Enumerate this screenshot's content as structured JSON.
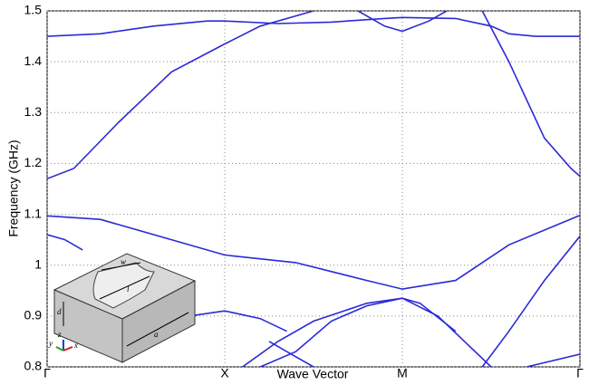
{
  "chart_data": {
    "type": "line",
    "xlabel": "Wave Vector",
    "ylabel": "Frequency (GHz)",
    "xlim": [
      0,
      3
    ],
    "ylim": [
      0.8,
      1.5
    ],
    "xticks": [
      {
        "value": 0,
        "label": "Γ"
      },
      {
        "value": 1,
        "label": "X"
      },
      {
        "value": 2,
        "label": "M"
      },
      {
        "value": 3,
        "label": "Γ"
      }
    ],
    "yticks": [
      0.8,
      0.9,
      1,
      1.1,
      1.2,
      1.3,
      1.4,
      1.5
    ],
    "grid": true,
    "series": [
      {
        "color": "#2a2ad8",
        "x": [
          0,
          0.3,
          0.6,
          0.9,
          1,
          1.3,
          1.6,
          1.9,
          2
        ],
        "values": [
          1.45,
          1.455,
          1.47,
          1.48,
          1.48,
          1.475,
          1.478,
          1.485,
          1.487
        ]
      },
      {
        "color": "#2a2ad8",
        "x": [
          2,
          2.3,
          2.5,
          2.6,
          2.75,
          3
        ],
        "values": [
          1.487,
          1.485,
          1.47,
          1.455,
          1.45,
          1.45
        ]
      },
      {
        "color": "#2a2ad8",
        "x": [
          0,
          0.15,
          0.4,
          0.7,
          1,
          1.2,
          1.4,
          1.5
        ],
        "values": [
          1.17,
          1.19,
          1.28,
          1.38,
          1.435,
          1.47,
          1.49,
          1.5
        ]
      },
      {
        "color": "#2a2ad8",
        "x": [
          1.75,
          1.9,
          2,
          2.15,
          2.25
        ],
        "values": [
          1.5,
          1.47,
          1.46,
          1.48,
          1.5
        ]
      },
      {
        "color": "#2a2ad8",
        "x": [
          2.45,
          2.6,
          2.8,
          2.95,
          3
        ],
        "values": [
          1.5,
          1.4,
          1.25,
          1.19,
          1.175
        ]
      },
      {
        "color": "#2a2ad8",
        "x": [
          0,
          0.3,
          0.6,
          1,
          1.4,
          1.8,
          2,
          2.3,
          2.6,
          3
        ],
        "values": [
          1.097,
          1.09,
          1.06,
          1.02,
          1.005,
          0.97,
          0.953,
          0.97,
          1.04,
          1.098
        ]
      },
      {
        "color": "#2a2ad8",
        "x": [
          0,
          0.1,
          0.2
        ],
        "values": [
          1.06,
          1.05,
          1.03
        ]
      },
      {
        "color": "#2a2ad8",
        "x": [
          0.6,
          0.8,
          1,
          1.2,
          1.35
        ],
        "values": [
          0.88,
          0.9,
          0.91,
          0.895,
          0.87
        ]
      },
      {
        "color": "#2a2ad8",
        "x": [
          1.1,
          1.3,
          1.5,
          1.8,
          2,
          2.2,
          2.5
        ],
        "values": [
          0.8,
          0.85,
          0.89,
          0.925,
          0.935,
          0.9,
          0.8
        ]
      },
      {
        "color": "#2a2ad8",
        "x": [
          1.2,
          1.4,
          1.6,
          1.8,
          2,
          2.1,
          2.3
        ],
        "values": [
          0.8,
          0.83,
          0.89,
          0.92,
          0.935,
          0.925,
          0.87
        ]
      },
      {
        "color": "#2a2ad8",
        "x": [
          1.25,
          1.35,
          1.5
        ],
        "values": [
          0.85,
          0.83,
          0.8
        ]
      },
      {
        "color": "#2a2ad8",
        "x": [
          2.45,
          2.6,
          2.8,
          3
        ],
        "values": [
          0.8,
          0.87,
          0.97,
          1.057
        ]
      },
      {
        "color": "#2a2ad8",
        "x": [
          2.7,
          3
        ],
        "values": [
          0.8,
          0.825
        ]
      }
    ]
  },
  "inset": {
    "labels": [
      "w",
      "l",
      "d",
      "a",
      "z",
      "y",
      "x"
    ]
  }
}
